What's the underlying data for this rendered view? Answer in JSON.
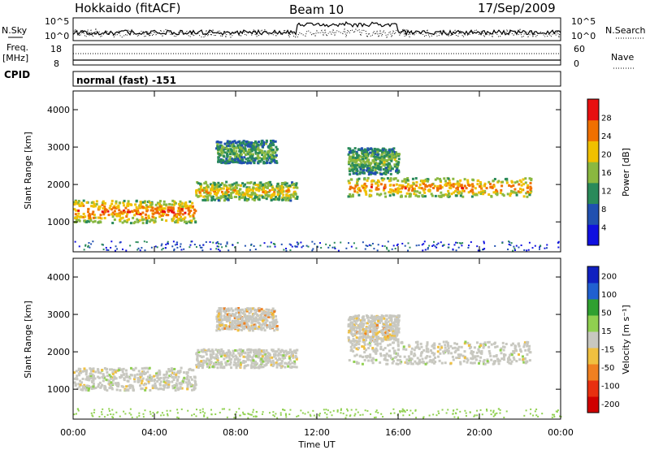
{
  "header": {
    "radar": "Hokkaido (fitACF)",
    "beam": "Beam 10",
    "date": "17/Sep/2009"
  },
  "summary": {
    "nsky_label": "N.Sky",
    "nsky_ticks": [
      "10^5",
      "10^0"
    ],
    "nsearch_label": "N.Search",
    "nsearch_ticks": [
      "10^5",
      "10^0"
    ],
    "freq_label_1": "Freq.",
    "freq_label_2": "[MHz]",
    "freq_ticks": [
      "18",
      "8"
    ],
    "nave_label": "Nave",
    "nave_ticks": [
      "60",
      "0"
    ],
    "cpid_label": "CPID",
    "cpid_value": "normal (fast) -151"
  },
  "chart_data": [
    {
      "type": "heatmap",
      "name": "power",
      "ylabel": "Slant Range [km]",
      "yticks": [
        "1000",
        "2000",
        "3000",
        "4000"
      ],
      "ylim": [
        200,
        4500
      ],
      "colorbar_label": "Power [dB]",
      "colorbar_ticks": [
        "4",
        "8",
        "12",
        "16",
        "20",
        "24",
        "28"
      ],
      "colorbar_range": [
        0,
        32
      ],
      "colors": [
        "#1010e0",
        "#2050b0",
        "#2a8a5a",
        "#8ab840",
        "#f0c000",
        "#f07000",
        "#e81010"
      ],
      "echo_bands": [
        {
          "t0": 0.0,
          "t1": 6.0,
          "r0": 1000,
          "r1": 1600,
          "level": 0.9
        },
        {
          "t0": 6.0,
          "t1": 11.0,
          "r0": 1600,
          "r1": 2100,
          "level": 0.7
        },
        {
          "t0": 7.0,
          "t1": 10.0,
          "r0": 2600,
          "r1": 3200,
          "level": 0.45
        },
        {
          "t0": 13.5,
          "t1": 22.5,
          "r0": 1700,
          "r1": 2200,
          "level": 0.85
        },
        {
          "t0": 13.5,
          "t1": 16.0,
          "r0": 2300,
          "r1": 3000,
          "level": 0.5
        }
      ]
    },
    {
      "type": "heatmap",
      "name": "velocity",
      "ylabel": "Slant Range [km]",
      "yticks": [
        "1000",
        "2000",
        "3000",
        "4000"
      ],
      "ylim": [
        200,
        4500
      ],
      "colorbar_label": "Velocity [m s⁻¹]",
      "colorbar_ticks": [
        "200",
        "100",
        "50",
        "15",
        "-15",
        "-50",
        "-100",
        "-200"
      ],
      "colorbar_range": [
        -250,
        250
      ],
      "colors": [
        "#1020c0",
        "#2060d0",
        "#30a030",
        "#90d050",
        "#c8c8c0",
        "#f0c040",
        "#f08020",
        "#e83010",
        "#d00000"
      ],
      "echo_bands": [
        {
          "t0": 0.0,
          "t1": 6.0,
          "r0": 1000,
          "r1": 1600,
          "level": 0.0
        },
        {
          "t0": 6.0,
          "t1": 11.0,
          "r0": 1600,
          "r1": 2100,
          "level": 0.0
        },
        {
          "t0": 7.0,
          "t1": 10.0,
          "r0": 2600,
          "r1": 3200,
          "level": -0.3
        },
        {
          "t0": 13.5,
          "t1": 22.5,
          "r0": 1700,
          "r1": 2300,
          "level": 0.0
        },
        {
          "t0": 13.5,
          "t1": 16.0,
          "r0": 2300,
          "r1": 3000,
          "level": -0.2
        }
      ]
    }
  ],
  "xaxis": {
    "label": "Time UT",
    "ticks": [
      "00:00",
      "04:00",
      "08:00",
      "12:00",
      "16:00",
      "20:00",
      "00:00"
    ],
    "range_hours": [
      0,
      24
    ]
  }
}
